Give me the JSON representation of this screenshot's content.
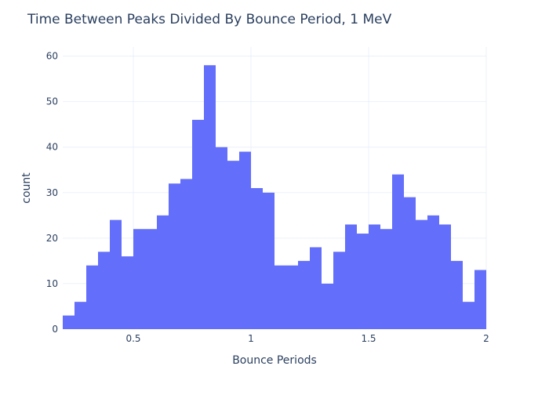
{
  "chart_data": {
    "type": "bar",
    "title": "Time Between Peaks Divided By Bounce Period, 1 MeV",
    "xlabel": "Bounce Periods",
    "ylabel": "count",
    "xlim": [
      0.2,
      2.0
    ],
    "ylim": [
      0,
      62
    ],
    "bin_width": 0.05,
    "x_ticks": [
      {
        "value": 0.5,
        "label": "0.5"
      },
      {
        "value": 1.0,
        "label": "1"
      },
      {
        "value": 1.5,
        "label": "1.5"
      },
      {
        "value": 2.0,
        "label": "2"
      }
    ],
    "y_ticks": [
      {
        "value": 0,
        "label": "0"
      },
      {
        "value": 10,
        "label": "10"
      },
      {
        "value": 20,
        "label": "20"
      },
      {
        "value": 30,
        "label": "30"
      },
      {
        "value": 40,
        "label": "40"
      },
      {
        "value": 50,
        "label": "50"
      },
      {
        "value": 60,
        "label": "60"
      }
    ],
    "grid": true,
    "bar_color": "#636efa",
    "bins": [
      {
        "x0": 0.2,
        "value": 3
      },
      {
        "x0": 0.25,
        "value": 6
      },
      {
        "x0": 0.3,
        "value": 14
      },
      {
        "x0": 0.35,
        "value": 17
      },
      {
        "x0": 0.4,
        "value": 24
      },
      {
        "x0": 0.45,
        "value": 16
      },
      {
        "x0": 0.5,
        "value": 22
      },
      {
        "x0": 0.55,
        "value": 22
      },
      {
        "x0": 0.6,
        "value": 25
      },
      {
        "x0": 0.65,
        "value": 32
      },
      {
        "x0": 0.7,
        "value": 33
      },
      {
        "x0": 0.75,
        "value": 46
      },
      {
        "x0": 0.8,
        "value": 58
      },
      {
        "x0": 0.85,
        "value": 40
      },
      {
        "x0": 0.9,
        "value": 37
      },
      {
        "x0": 0.95,
        "value": 39
      },
      {
        "x0": 1.0,
        "value": 31
      },
      {
        "x0": 1.05,
        "value": 30
      },
      {
        "x0": 1.1,
        "value": 14
      },
      {
        "x0": 1.15,
        "value": 14
      },
      {
        "x0": 1.2,
        "value": 15
      },
      {
        "x0": 1.25,
        "value": 18
      },
      {
        "x0": 1.3,
        "value": 10
      },
      {
        "x0": 1.35,
        "value": 17
      },
      {
        "x0": 1.4,
        "value": 23
      },
      {
        "x0": 1.45,
        "value": 21
      },
      {
        "x0": 1.5,
        "value": 23
      },
      {
        "x0": 1.55,
        "value": 22
      },
      {
        "x0": 1.6,
        "value": 34
      },
      {
        "x0": 1.65,
        "value": 29
      },
      {
        "x0": 1.7,
        "value": 24
      },
      {
        "x0": 1.75,
        "value": 25
      },
      {
        "x0": 1.8,
        "value": 23
      },
      {
        "x0": 1.85,
        "value": 15
      },
      {
        "x0": 1.9,
        "value": 6
      },
      {
        "x0": 1.95,
        "value": 13
      }
    ]
  }
}
